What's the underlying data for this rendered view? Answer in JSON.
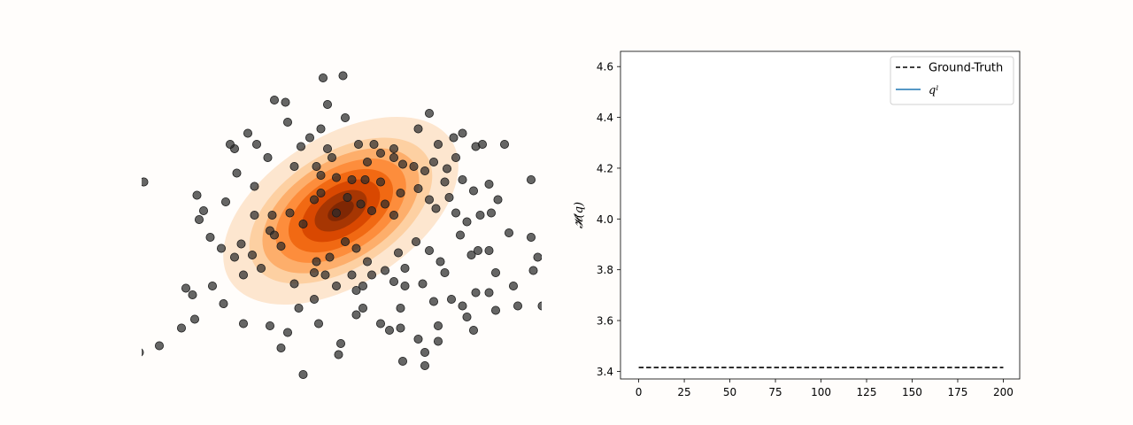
{
  "chart_data": [
    {
      "type": "scatter",
      "description_role": "left panel: gaussian density contours with sample points",
      "density": {
        "mean": [
          0.0,
          0.0
        ],
        "cov": [
          [
            1.0,
            0.6
          ],
          [
            0.6,
            1.6
          ]
        ],
        "levels": 9,
        "colormap": [
          "#fde6cf",
          "#fdd0a2",
          "#fdae6b",
          "#fd8d3c",
          "#f16913",
          "#d94801",
          "#a63603",
          "#7f2704"
        ]
      },
      "points_color": "#2b2b2b",
      "points": [
        [
          0.05,
          3.15
        ],
        [
          -1.5,
          2.6
        ],
        [
          -0.3,
          2.5
        ],
        [
          0.1,
          2.2
        ],
        [
          -1.2,
          2.1
        ],
        [
          -0.7,
          1.75
        ],
        [
          -1.9,
          1.6
        ],
        [
          -2.4,
          1.5
        ],
        [
          -0.9,
          1.55
        ],
        [
          -0.45,
          1.95
        ],
        [
          -1.65,
          1.3
        ],
        [
          -0.3,
          1.5
        ],
        [
          0.4,
          1.6
        ],
        [
          0.75,
          1.6
        ],
        [
          0.9,
          1.4
        ],
        [
          1.2,
          1.5
        ],
        [
          2.0,
          2.3
        ],
        [
          1.75,
          1.95
        ],
        [
          2.2,
          1.6
        ],
        [
          2.55,
          1.75
        ],
        [
          2.6,
          1.3
        ],
        [
          3.05,
          1.55
        ],
        [
          3.2,
          1.6
        ],
        [
          2.75,
          1.85
        ],
        [
          3.7,
          1.6
        ],
        [
          -2.1,
          1.85
        ],
        [
          -2.5,
          1.6
        ],
        [
          -1.05,
          1.1
        ],
        [
          -0.55,
          1.1
        ],
        [
          -0.45,
          0.9
        ],
        [
          -0.1,
          0.85
        ],
        [
          0.25,
          0.8
        ],
        [
          0.6,
          1.2
        ],
        [
          0.55,
          0.8
        ],
        [
          0.9,
          0.75
        ],
        [
          1.2,
          1.3
        ],
        [
          1.4,
          1.15
        ],
        [
          1.65,
          1.1
        ],
        [
          1.9,
          1.0
        ],
        [
          2.1,
          1.2
        ],
        [
          2.4,
          1.05
        ],
        [
          2.35,
          0.75
        ],
        [
          2.45,
          0.4
        ],
        [
          2.75,
          0.8
        ],
        [
          3.0,
          0.55
        ],
        [
          3.35,
          0.7
        ],
        [
          3.55,
          0.35
        ],
        [
          4.3,
          0.8
        ],
        [
          -4.45,
          0.75
        ],
        [
          -3.1,
          0.1
        ],
        [
          -3.2,
          -0.1
        ],
        [
          -2.6,
          0.3
        ],
        [
          -1.95,
          0.0
        ],
        [
          -1.55,
          0.0
        ],
        [
          -1.6,
          -0.35
        ],
        [
          -1.15,
          0.05
        ],
        [
          -0.85,
          -0.2
        ],
        [
          -0.6,
          0.35
        ],
        [
          -0.45,
          0.5
        ],
        [
          -0.1,
          0.05
        ],
        [
          0.15,
          0.4
        ],
        [
          0.45,
          0.25
        ],
        [
          0.7,
          0.1
        ],
        [
          1.0,
          0.25
        ],
        [
          1.35,
          0.5
        ],
        [
          1.75,
          0.6
        ],
        [
          2.0,
          0.35
        ],
        [
          2.15,
          0.15
        ],
        [
          2.6,
          0.05
        ],
        [
          2.85,
          -0.15
        ],
        [
          3.15,
          0.0
        ],
        [
          3.4,
          0.05
        ],
        [
          3.8,
          -0.4
        ],
        [
          4.3,
          -0.5
        ],
        [
          4.65,
          -0.7
        ],
        [
          -2.95,
          -0.5
        ],
        [
          -2.7,
          -0.75
        ],
        [
          -2.4,
          -0.95
        ],
        [
          -2.25,
          -0.65
        ],
        [
          -2.0,
          -0.9
        ],
        [
          -1.5,
          -0.45
        ],
        [
          -1.35,
          -0.7
        ],
        [
          -0.6,
          -1.3
        ],
        [
          -0.55,
          -1.05
        ],
        [
          -0.25,
          -0.95
        ],
        [
          0.1,
          -0.6
        ],
        [
          0.35,
          -0.75
        ],
        [
          0.6,
          -1.05
        ],
        [
          0.7,
          -1.35
        ],
        [
          1.0,
          -1.25
        ],
        [
          1.3,
          -0.85
        ],
        [
          1.7,
          -0.6
        ],
        [
          2.0,
          -0.8
        ],
        [
          2.25,
          -1.05
        ],
        [
          2.35,
          -1.3
        ],
        [
          2.95,
          -0.9
        ],
        [
          3.1,
          -0.8
        ],
        [
          3.35,
          -0.8
        ],
        [
          3.5,
          -1.3
        ],
        [
          3.9,
          -1.6
        ],
        [
          4.35,
          -1.25
        ],
        [
          4.45,
          -0.95
        ],
        [
          -3.35,
          -1.8
        ],
        [
          -2.9,
          -1.6
        ],
        [
          -2.65,
          -2.0
        ],
        [
          -1.05,
          -1.55
        ],
        [
          -0.95,
          -2.1
        ],
        [
          -0.6,
          -1.9
        ],
        [
          -0.1,
          -1.6
        ],
        [
          0.35,
          -1.7
        ],
        [
          0.5,
          -1.6
        ],
        [
          1.2,
          -1.5
        ],
        [
          1.45,
          -1.6
        ],
        [
          1.35,
          -2.1
        ],
        [
          1.85,
          -1.55
        ],
        [
          2.1,
          -1.95
        ],
        [
          2.5,
          -1.9
        ],
        [
          2.75,
          -2.05
        ],
        [
          3.05,
          -1.75
        ],
        [
          3.35,
          -1.75
        ],
        [
          3.5,
          -2.15
        ],
        [
          4.0,
          -2.05
        ],
        [
          4.55,
          -2.05
        ],
        [
          5.0,
          -2.1
        ],
        [
          5.2,
          -1.8
        ],
        [
          -3.5,
          -1.65
        ],
        [
          -2.2,
          -2.45
        ],
        [
          -1.6,
          -2.5
        ],
        [
          -0.5,
          -2.45
        ],
        [
          0.5,
          -2.1
        ],
        [
          1.1,
          -2.6
        ],
        [
          1.35,
          -2.55
        ],
        [
          1.75,
          -2.8
        ],
        [
          2.2,
          -2.5
        ],
        [
          -1.2,
          -2.65
        ],
        [
          -1.35,
          -3.0
        ],
        [
          -0.05,
          -3.15
        ],
        [
          1.4,
          -3.3
        ],
        [
          1.9,
          -3.1
        ],
        [
          2.2,
          -2.85
        ],
        [
          -4.1,
          -2.95
        ],
        [
          -4.55,
          -3.1
        ],
        [
          -3.6,
          -2.55
        ],
        [
          -3.3,
          -2.35
        ],
        [
          0.0,
          -2.9
        ],
        [
          0.9,
          -2.45
        ],
        [
          0.35,
          -2.25
        ],
        [
          2.85,
          -2.3
        ],
        [
          -1.8,
          -1.2
        ],
        [
          -0.35,
          -1.35
        ],
        [
          1.2,
          0.0
        ],
        [
          -0.2,
          1.3
        ],
        [
          2.7,
          -0.45
        ],
        [
          -2.2,
          -1.35
        ],
        [
          3.0,
          -2.6
        ],
        [
          -0.85,
          -3.6
        ],
        [
          1.9,
          -3.4
        ],
        [
          0.5,
          -3.8
        ],
        [
          -0.4,
          3.1
        ],
        [
          -2.35,
          0.95
        ],
        [
          -1.25,
          2.55
        ],
        [
          -1.95,
          0.65
        ],
        [
          -3.25,
          0.45
        ],
        [
          1.45,
          -1.2
        ],
        [
          0.25,
          -1.35
        ]
      ]
    },
    {
      "type": "line",
      "description_role": "right panel: entropy vs iteration",
      "x_ticks": [
        "0",
        "25",
        "50",
        "75",
        "100",
        "125",
        "150",
        "175",
        "200"
      ],
      "y_ticks": [
        "3.4",
        "3.6",
        "3.8",
        "4.0",
        "4.2",
        "4.4",
        "4.6"
      ],
      "xlim": [
        -10,
        209
      ],
      "ylim": [
        3.37,
        4.66
      ],
      "ylabel": "𝓗(q)",
      "series": [
        {
          "name": "Ground-Truth",
          "style": "dashed",
          "color": "#000000",
          "x": [
            0,
            200
          ],
          "y": [
            3.415,
            3.415
          ]
        },
        {
          "name": "qˡ",
          "style": "solid",
          "color": "#1f77b4",
          "x": [],
          "y": []
        }
      ],
      "legend": {
        "placement": "top-right",
        "entries": [
          "Ground-Truth",
          "qˡ"
        ]
      }
    }
  ]
}
